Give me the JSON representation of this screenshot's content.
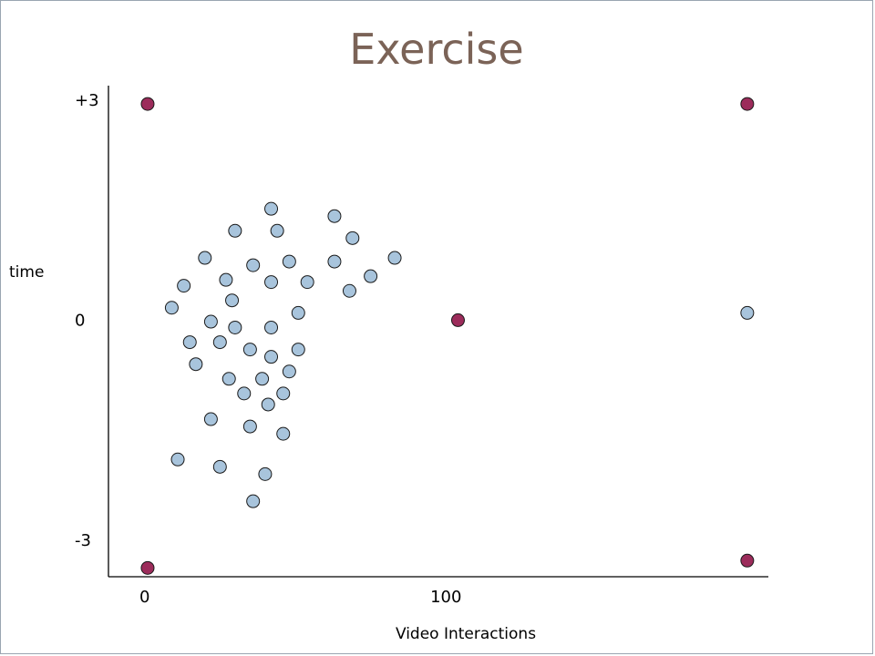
{
  "chart_data": {
    "type": "scatter",
    "title": "Exercise",
    "xlabel": "Video Interactions",
    "ylabel": "time",
    "xlim": [
      -12,
      207
    ],
    "ylim": [
      -3.5,
      3.2
    ],
    "x_tick_labels": [
      {
        "value": 0,
        "label": "0"
      },
      {
        "value": 100,
        "label": "100"
      }
    ],
    "y_tick_labels": [
      {
        "value": 3,
        "label": "+3"
      },
      {
        "value": 0,
        "label": "0"
      },
      {
        "value": -3,
        "label": "-3"
      }
    ],
    "grid": false,
    "legend": "none",
    "series": [
      {
        "color": "#a8c4dc",
        "points": [
          [
            42,
            1.52
          ],
          [
            30,
            1.22
          ],
          [
            44,
            1.22
          ],
          [
            63,
            1.42
          ],
          [
            69,
            1.12
          ],
          [
            20,
            0.85
          ],
          [
            36,
            0.75
          ],
          [
            48,
            0.8
          ],
          [
            63,
            0.8
          ],
          [
            83,
            0.85
          ],
          [
            13,
            0.47
          ],
          [
            27,
            0.55
          ],
          [
            42,
            0.52
          ],
          [
            54,
            0.52
          ],
          [
            75,
            0.6
          ],
          [
            68,
            0.4
          ],
          [
            9,
            0.17
          ],
          [
            29,
            0.27
          ],
          [
            51,
            0.1
          ],
          [
            22,
            -0.02
          ],
          [
            30,
            -0.1
          ],
          [
            42,
            -0.1
          ],
          [
            15,
            -0.3
          ],
          [
            25,
            -0.3
          ],
          [
            35,
            -0.4
          ],
          [
            42,
            -0.5
          ],
          [
            51,
            -0.4
          ],
          [
            17,
            -0.6
          ],
          [
            48,
            -0.7
          ],
          [
            28,
            -0.8
          ],
          [
            39,
            -0.8
          ],
          [
            33,
            -1.0
          ],
          [
            46,
            -1.0
          ],
          [
            41,
            -1.15
          ],
          [
            22,
            -1.35
          ],
          [
            35,
            -1.45
          ],
          [
            46,
            -1.55
          ],
          [
            11,
            -1.9
          ],
          [
            25,
            -2.0
          ],
          [
            40,
            -2.1
          ],
          [
            36,
            -2.47
          ],
          [
            200,
            0.1
          ]
        ]
      },
      {
        "color": "#9c2c5b",
        "points": [
          [
            1,
            2.95
          ],
          [
            200,
            2.95
          ],
          [
            104,
            0.0
          ],
          [
            1,
            -3.38
          ],
          [
            200,
            -3.28
          ]
        ]
      }
    ]
  }
}
